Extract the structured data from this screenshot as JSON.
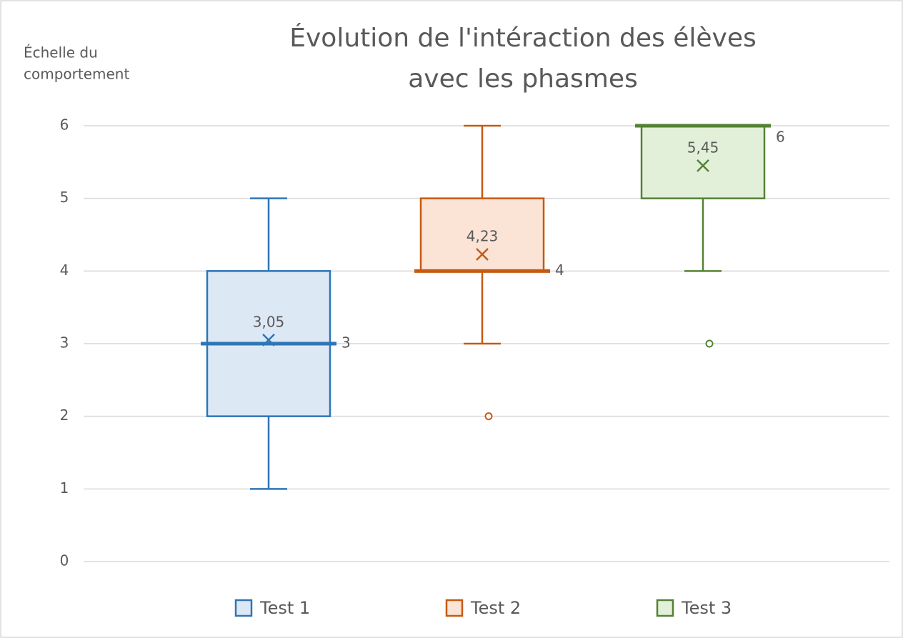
{
  "chart_data": {
    "type": "box",
    "title": [
      "Évolution de l'intéraction des élèves",
      "avec les phasmes"
    ],
    "y_label": [
      "Échelle du",
      "comportement"
    ],
    "ylim": [
      0,
      6
    ],
    "yticks": [
      0,
      1,
      2,
      3,
      4,
      5,
      6
    ],
    "grid": true,
    "legend": "bottom",
    "series": [
      {
        "name": "Test 1",
        "color": "#2e75b6",
        "fill": "#dde8f5",
        "min": 1,
        "q1": 2,
        "median": 3,
        "q3": 4,
        "max": 5,
        "mean": 3.05,
        "mean_label": "3,05",
        "outliers": []
      },
      {
        "name": "Test 2",
        "color": "#c55a11",
        "fill": "#fbe3d6",
        "min": 3,
        "q1": 4,
        "median": 4,
        "q3": 5,
        "max": 6,
        "mean": 4.23,
        "mean_label": "4,23",
        "outliers": [
          2
        ]
      },
      {
        "name": "Test 3",
        "color": "#548235",
        "fill": "#e2f0d9",
        "min": 4,
        "q1": 5,
        "median": 6,
        "q3": 6,
        "max": 6,
        "mean": 5.45,
        "mean_label": "5,45",
        "outliers": [
          3
        ]
      }
    ]
  }
}
